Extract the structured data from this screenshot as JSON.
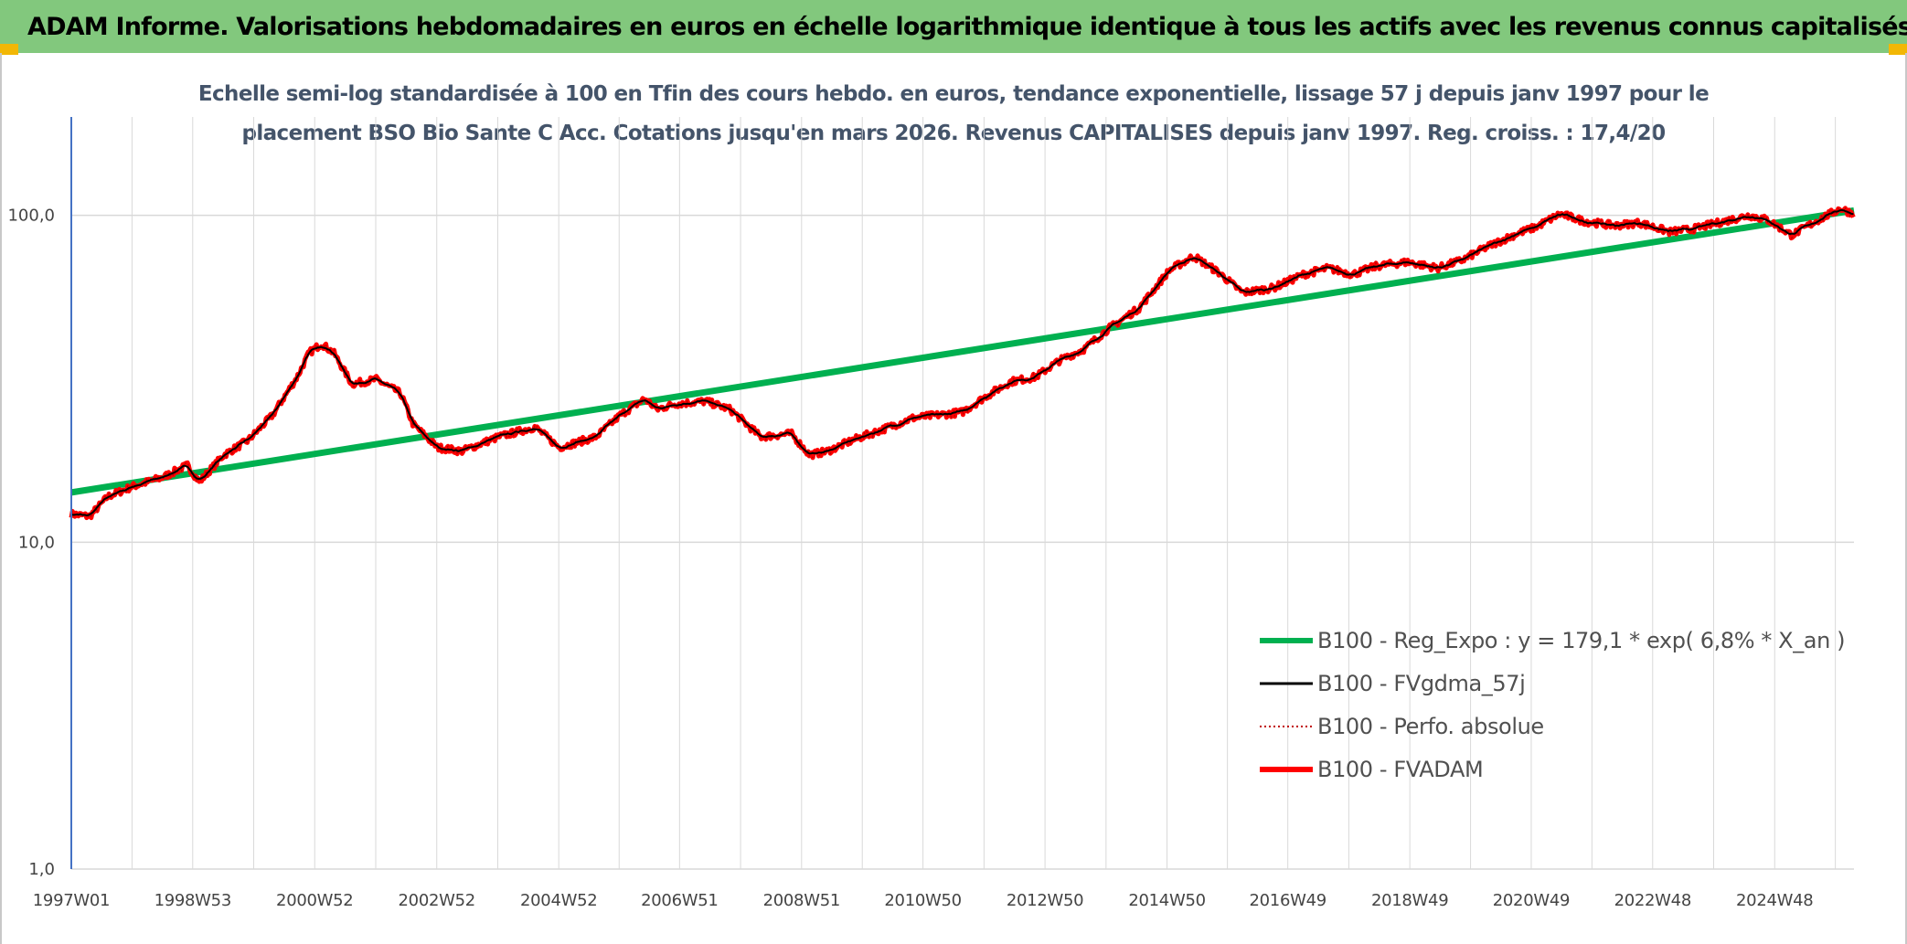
{
  "header": {
    "title": "ADAM Informe. Valorisations hebdomadaires en euros en échelle logarithmique identique à tous les actifs avec les revenus connus capitalisés"
  },
  "chart_data": {
    "type": "line",
    "subtitle_lines": [
      "Echelle semi-log standardisée à 100 en Tfin des cours hebdo. en euros, tendance exponentielle, lissage 57 j depuis janv 1997 pour le",
      "placement BSO Bio Sante C Acc. Cotations jusqu'en mars 2026. Revenus CAPITALISES depuis janv 1997. Reg. croiss. : 17,4/20"
    ],
    "y_scale": "log",
    "ylim": [
      1,
      200
    ],
    "y_ticks": [
      1,
      10,
      100
    ],
    "y_tick_labels": [
      "1,0",
      "10,0",
      "100,0"
    ],
    "xlim": [
      1997.0,
      2026.22
    ],
    "x_ticks": [
      1997.0,
      1998.99,
      2000.99,
      2002.99,
      2004.99,
      2006.97,
      2008.97,
      2010.96,
      2012.96,
      2014.96,
      2016.94,
      2018.94,
      2020.93,
      2022.92,
      2024.92
    ],
    "x_tick_labels": [
      "1997W01",
      "1998W53",
      "2000W52",
      "2002W52",
      "2004W52",
      "2006W51",
      "2008W51",
      "2010W50",
      "2012W50",
      "2014W50",
      "2016W49",
      "2018W49",
      "2020W49",
      "2022W48",
      "2024W48"
    ],
    "grid": true,
    "legend_position": "right-center",
    "colors": {
      "reg_expo": "#00b050",
      "fvgdma": "#000000",
      "perfo": "#c00000",
      "fvadam": "#ff0000",
      "grid": "#d9d9d9",
      "y_axis": "#4472c4"
    },
    "series": [
      {
        "name": "B100 - Reg_Expo : y = 179,1 * exp( 6,8% *  X_an )",
        "style": "trend",
        "x": [
          1997.0,
          2026.22
        ],
        "y": [
          14.2,
          103.5
        ]
      },
      {
        "name": "B100 - FVgdma_57j",
        "style": "smooth"
      },
      {
        "name": "B100 - Perfo. absolue",
        "style": "dotted"
      },
      {
        "name": "B100 - FVADAM",
        "style": "main",
        "x": [
          1997.0,
          1997.3,
          1997.6,
          1998.0,
          1998.5,
          1998.9,
          1999.1,
          1999.5,
          1999.9,
          2000.3,
          2000.7,
          2000.9,
          2001.1,
          2001.3,
          2001.6,
          2002.0,
          2002.4,
          2002.6,
          2003.0,
          2003.4,
          2004.0,
          2004.6,
          2005.0,
          2005.6,
          2006.0,
          2006.4,
          2006.6,
          2006.9,
          2007.4,
          2007.8,
          2008.3,
          2008.8,
          2009.1,
          2009.4,
          2009.8,
          2010.4,
          2010.8,
          2011.2,
          2011.6,
          2012.0,
          2012.4,
          2012.8,
          2013.2,
          2013.6,
          2014.0,
          2014.5,
          2015.0,
          2015.4,
          2015.8,
          2016.2,
          2016.7,
          2017.2,
          2017.6,
          2018.0,
          2018.4,
          2018.9,
          2019.4,
          2019.8,
          2020.2,
          2020.7,
          2021.0,
          2021.4,
          2021.8,
          2022.3,
          2022.7,
          2023.2,
          2023.6,
          2024.0,
          2024.5,
          2024.8,
          2025.2,
          2025.6,
          2026.0,
          2026.22
        ],
        "y": [
          12.2,
          12.0,
          13.8,
          14.8,
          15.8,
          17.2,
          15.3,
          18.5,
          20.5,
          24.5,
          32.0,
          38.0,
          40.5,
          38.0,
          30.5,
          31.5,
          28.5,
          23.0,
          19.5,
          19.0,
          21.0,
          22.5,
          19.5,
          21.0,
          24.5,
          27.5,
          25.5,
          26.5,
          27.0,
          25.5,
          21.0,
          21.5,
          18.5,
          19.0,
          20.5,
          22.5,
          24.0,
          24.5,
          25.0,
          28.0,
          31.0,
          32.0,
          36.0,
          39.0,
          45.0,
          52.0,
          68.0,
          75.0,
          67.0,
          58.0,
          60.0,
          66.0,
          69.0,
          66.0,
          70.0,
          72.0,
          69.0,
          73.0,
          80.0,
          88.0,
          92.0,
          101.0,
          96.0,
          93.0,
          95.0,
          89.0,
          91.0,
          95.0,
          100.0,
          97.0,
          87.0,
          96.0,
          105.0,
          101.0
        ]
      }
    ]
  }
}
